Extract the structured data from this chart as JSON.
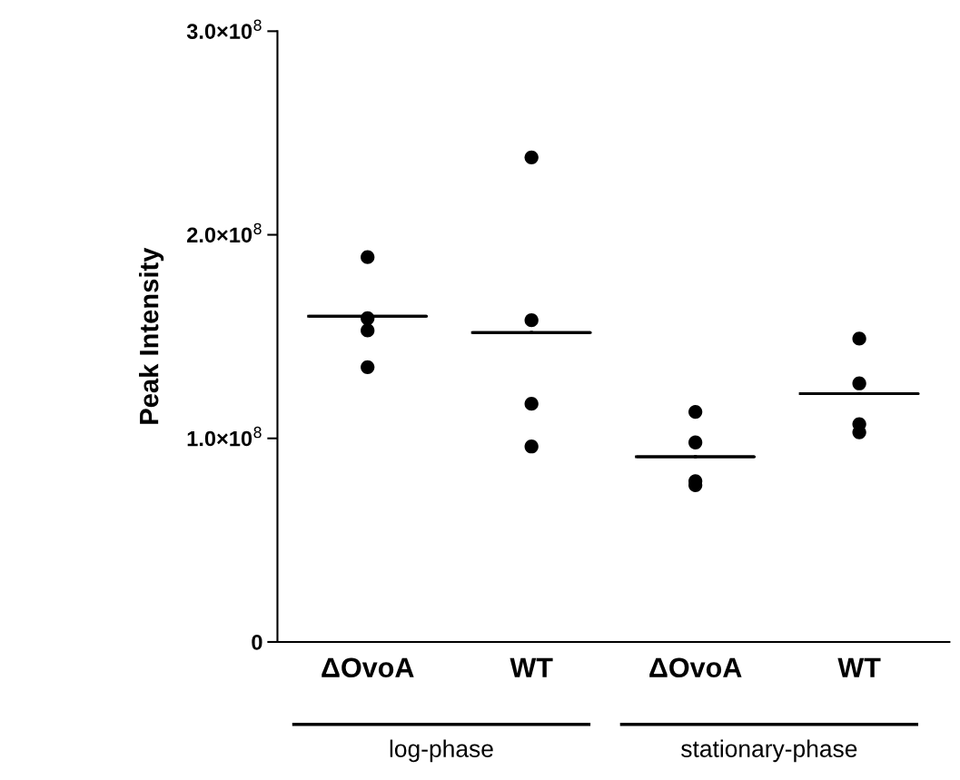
{
  "chart_data": {
    "type": "scatter",
    "ylabel": "Peak Intensity",
    "categories": [
      "ΔOvoA",
      "WT",
      "ΔOvoA",
      "WT"
    ],
    "series": [
      {
        "color": "#000000",
        "marker": "circle",
        "values": [
          189000000,
          238000000,
          113000000,
          149000000
        ]
      },
      {
        "color": "#000000",
        "marker": "circle",
        "values": [
          159000000,
          158000000,
          98000000,
          127000000
        ]
      },
      {
        "color": "#000000",
        "marker": "circle",
        "values": [
          153000000,
          117000000,
          77000000,
          103000000
        ]
      },
      {
        "color": "#000000",
        "marker": "circle",
        "values": [
          135000000,
          96000000,
          79000000,
          107000000
        ]
      },
      {
        "type": "box",
        "color": "#000000",
        "boxes": [
          {
            "low": 160000000,
            "q1": 160000000,
            "median": 160000000,
            "q3": 160000000,
            "high": 160000000
          },
          {
            "low": 152000000,
            "q1": 152000000,
            "median": 152000000,
            "q3": 152000000,
            "high": 152000000
          },
          {
            "low": 91000000,
            "q1": 91000000,
            "median": 91000000,
            "q3": 91000000,
            "high": 91000000
          },
          {
            "low": 122000000,
            "q1": 122000000,
            "median": 122000000,
            "q3": 122000000,
            "high": 122000000
          }
        ]
      }
    ],
    "ylim": [
      0,
      300000000
    ],
    "yticks": [
      0,
      {
        "value": 100000000,
        "label": "1.0×10$^{8}$"
      },
      {
        "value": 200000000,
        "label": "2.0×10$^{8}$"
      },
      {
        "value": 300000000,
        "label": "3.0×10$^{8}$"
      }
    ],
    "annotations": [
      "log-phase",
      "stationary-phase"
    ],
    "grid": false,
    "legend": false
  }
}
